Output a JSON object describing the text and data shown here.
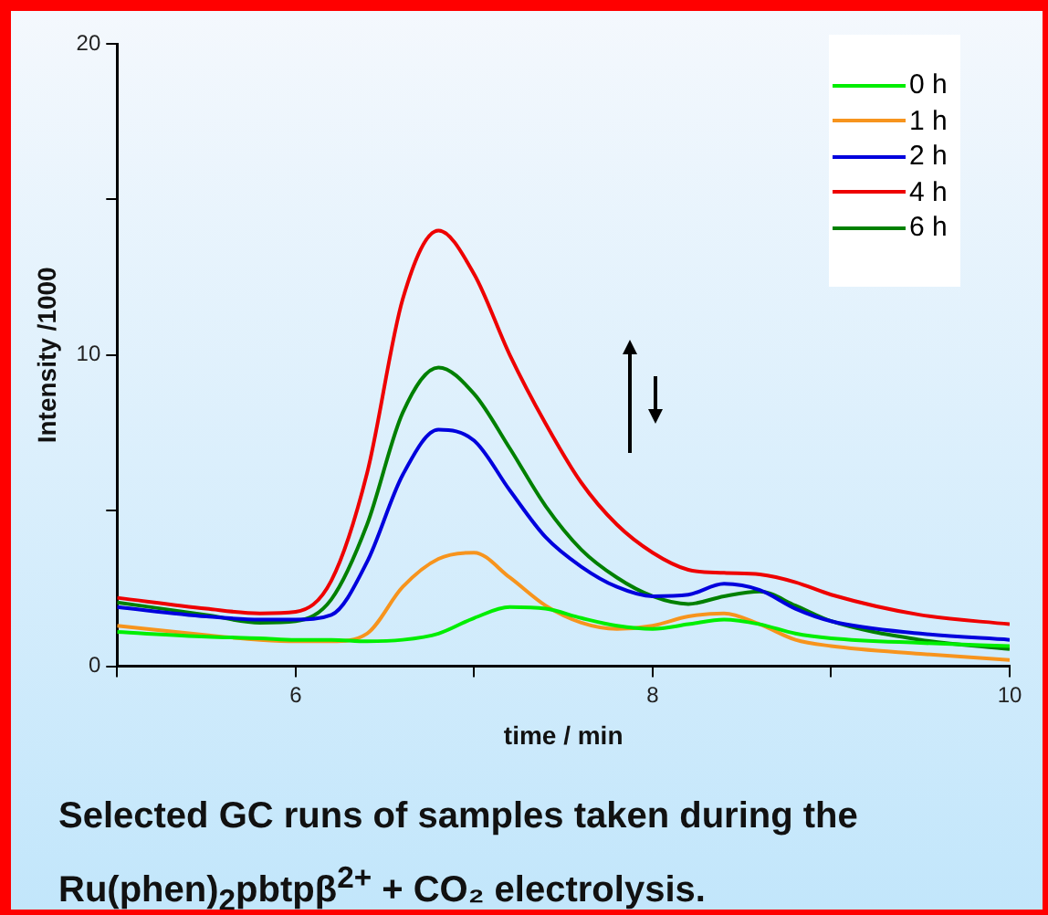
{
  "chart_data": {
    "type": "line",
    "xlabel": "time / min",
    "ylabel": "Intensity /1000",
    "annotations": [
      "Selected GC runs of samples taken during the Ru(phen)$_{2}$pbtpβ$^{2+}$ + CO₂ electrolysis."
    ],
    "x": [
      5,
      5.5,
      5.8,
      6,
      6.2,
      6.4,
      6.6,
      6.8,
      7.0,
      7.2,
      7.4,
      7.6,
      7.8,
      8.0,
      8.2,
      8.4,
      8.6,
      8.8,
      9.0,
      9.5,
      10
    ],
    "series": [
      {
        "name": "0 h",
        "color": "#00ee00",
        "values": [
          1.1,
          0.95,
          0.9,
          0.85,
          0.85,
          0.8,
          0.85,
          1.05,
          1.55,
          1.9,
          1.85,
          1.55,
          1.3,
          1.2,
          1.35,
          1.5,
          1.35,
          1.05,
          0.9,
          0.75,
          0.65
        ]
      },
      {
        "name": "1 h",
        "color": "#f7941d",
        "values": [
          1.3,
          1.0,
          0.85,
          0.8,
          0.8,
          1.05,
          2.55,
          3.45,
          3.65,
          2.85,
          1.95,
          1.4,
          1.2,
          1.3,
          1.6,
          1.7,
          1.35,
          0.85,
          0.65,
          0.4,
          0.2
        ]
      },
      {
        "name": "2 h",
        "color": "#0000dd",
        "values": [
          1.9,
          1.6,
          1.5,
          1.5,
          1.65,
          3.35,
          6.15,
          7.6,
          7.25,
          5.65,
          4.15,
          3.2,
          2.55,
          2.25,
          2.3,
          2.65,
          2.45,
          1.85,
          1.45,
          1.05,
          0.85
        ]
      },
      {
        "name": "4 h",
        "color": "#ee0000",
        "values": [
          2.2,
          1.85,
          1.7,
          1.75,
          2.75,
          6.2,
          11.8,
          14.0,
          12.6,
          10.0,
          7.8,
          5.9,
          4.55,
          3.65,
          3.1,
          3.0,
          2.95,
          2.7,
          2.3,
          1.65,
          1.35
        ]
      },
      {
        "name": "6 h",
        "color": "#008000",
        "values": [
          2.05,
          1.65,
          1.4,
          1.45,
          2.15,
          4.55,
          8.15,
          9.6,
          8.75,
          7.0,
          5.15,
          3.75,
          2.85,
          2.25,
          2.0,
          2.25,
          2.4,
          1.95,
          1.45,
          0.85,
          0.55
        ]
      }
    ],
    "xlim": [
      5,
      10
    ],
    "xticks": [
      {
        "value": 5,
        "label": null
      },
      6,
      {
        "value": 7,
        "label": null
      },
      8,
      {
        "value": 9,
        "label": null
      },
      10
    ],
    "ylim": [
      0,
      20
    ],
    "yticks": [
      0,
      {
        "value": 5,
        "label": null
      },
      10,
      {
        "value": 15,
        "label": null
      },
      20
    ],
    "grid": false,
    "legend": "top right",
    "marker": "none",
    "line_style": "solid"
  }
}
